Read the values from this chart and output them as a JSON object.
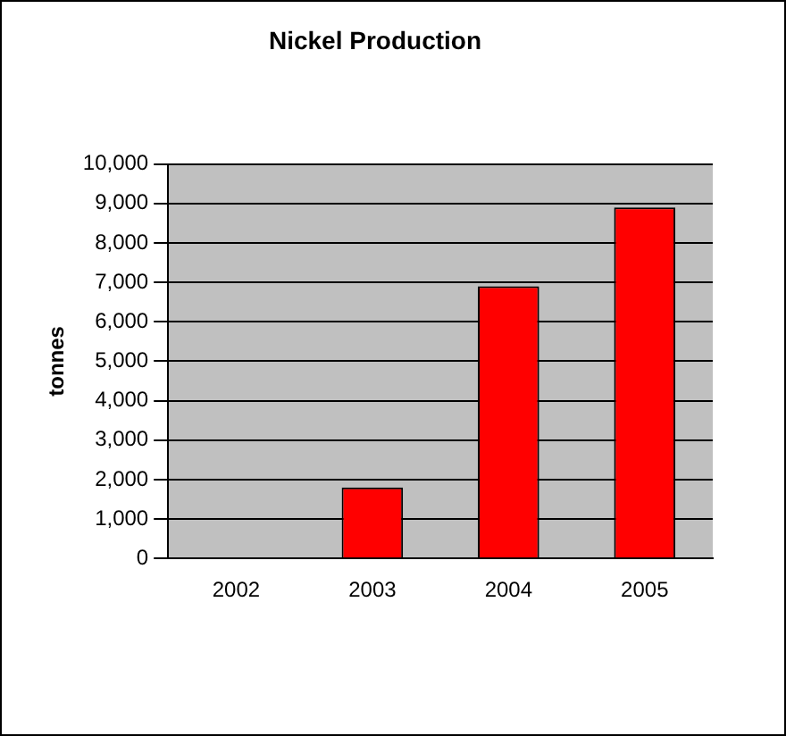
{
  "chart_data": {
    "type": "bar",
    "title": "Nickel Production",
    "ylabel": "tonnes",
    "categories": [
      "2002",
      "2003",
      "2004",
      "2005"
    ],
    "values": [
      0,
      1800,
      6900,
      8900
    ],
    "color": "#ff0000",
    "ylim": [
      0,
      10000
    ],
    "yticks": [
      0,
      {
        "value": 1000,
        "label": "1,000"
      },
      {
        "value": 2000,
        "label": "2,000"
      },
      {
        "value": 3000,
        "label": "3,000"
      },
      {
        "value": 4000,
        "label": "4,000"
      },
      {
        "value": 5000,
        "label": "5,000"
      },
      {
        "value": 6000,
        "label": "6,000"
      },
      {
        "value": 7000,
        "label": "7,000"
      },
      {
        "value": 8000,
        "label": "8,000"
      },
      {
        "value": 9000,
        "label": "9,000"
      },
      {
        "value": 10000,
        "label": "10,000"
      }
    ],
    "grid": "y",
    "legend": false
  }
}
